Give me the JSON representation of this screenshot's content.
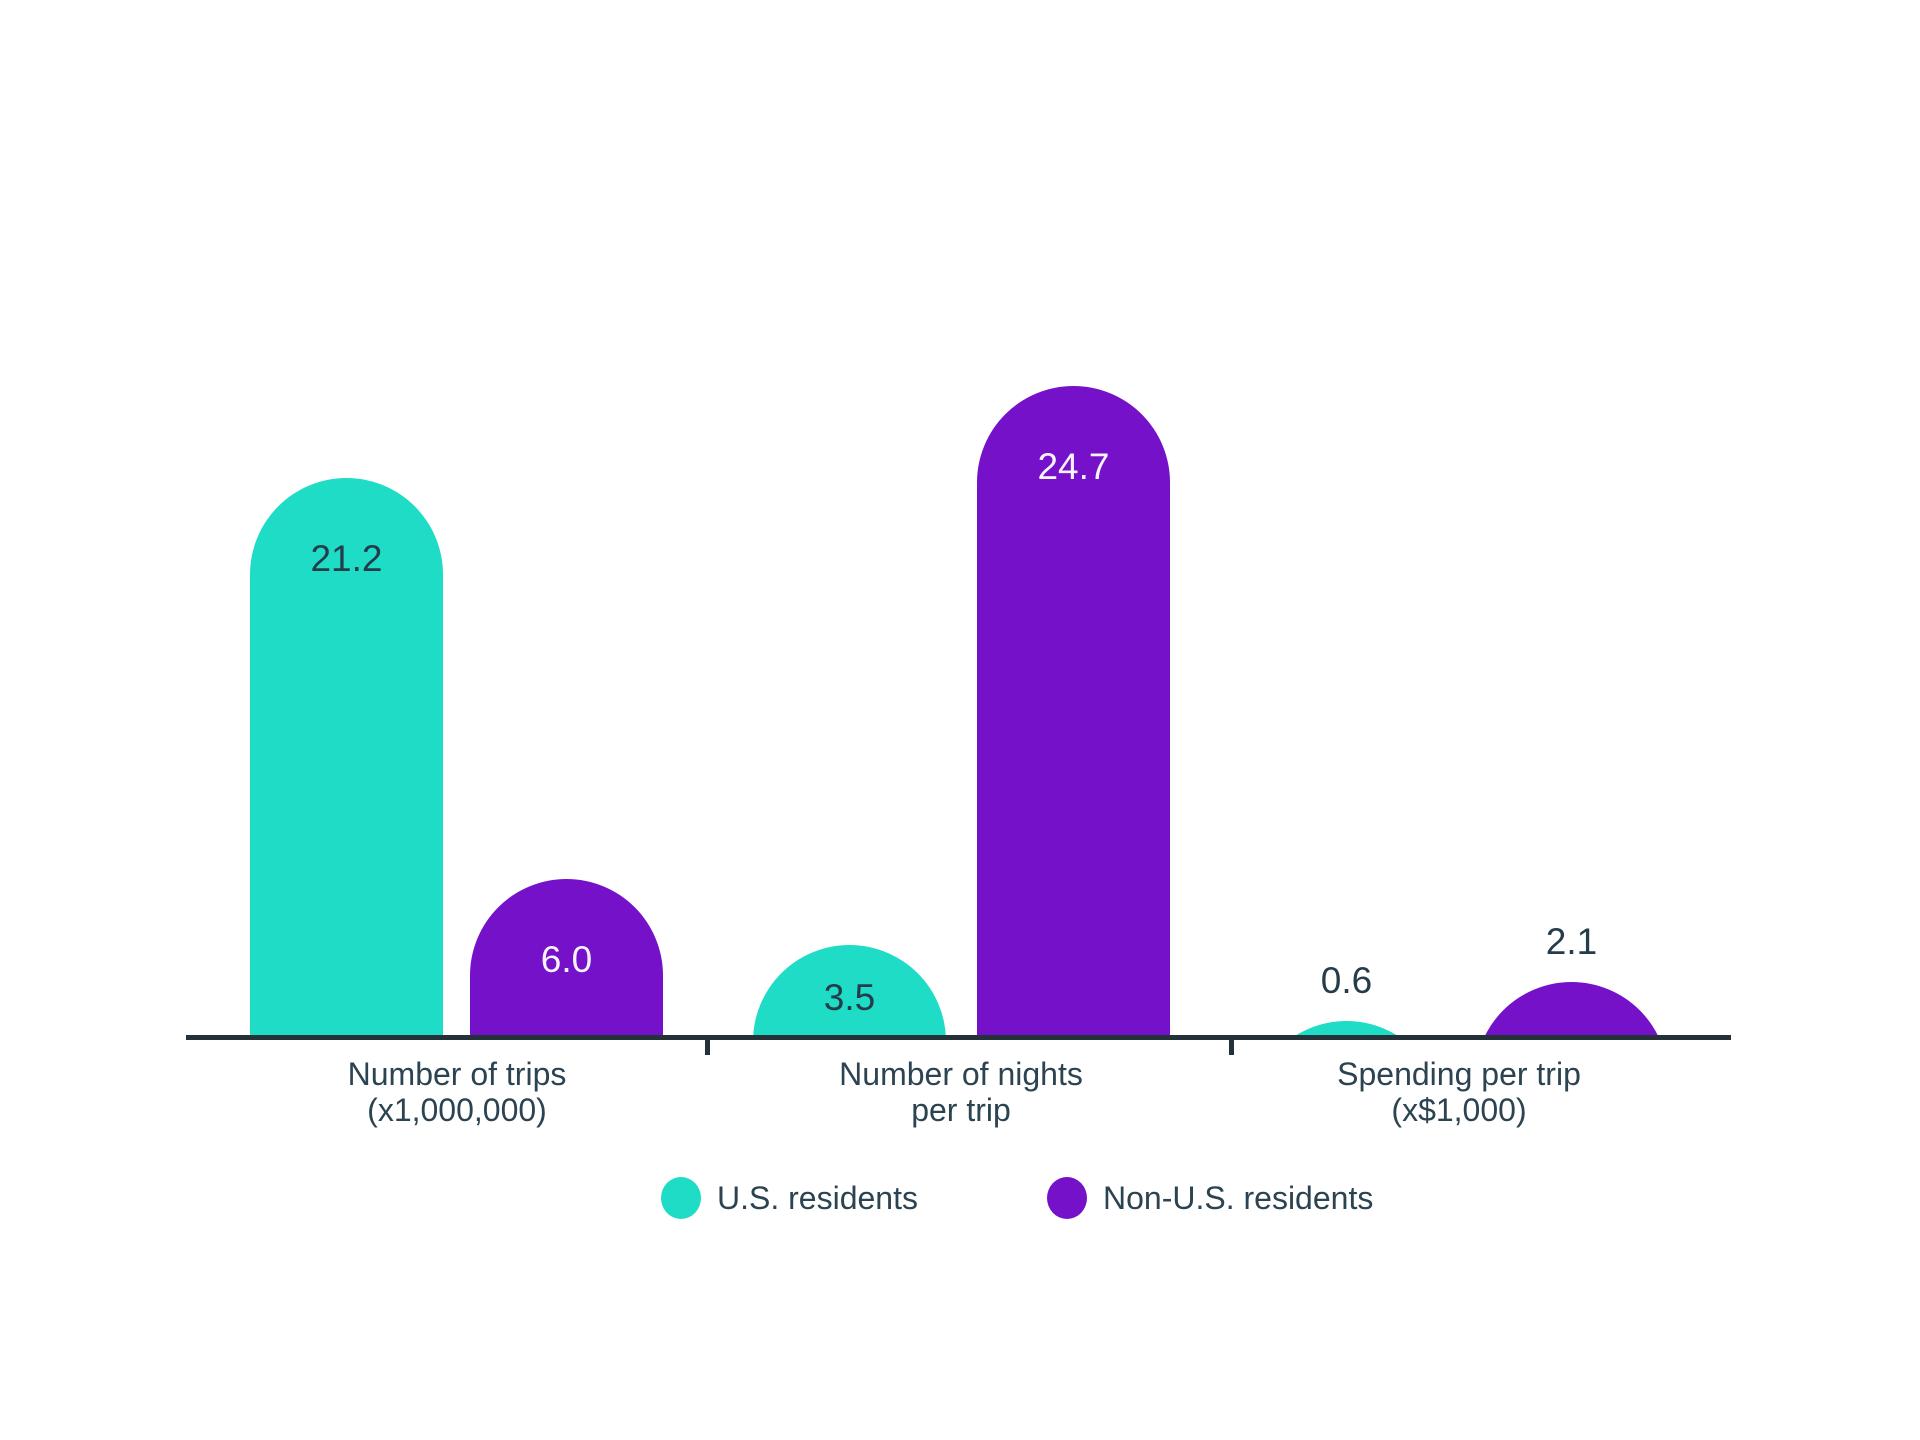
{
  "chart_data": {
    "type": "bar",
    "title": "",
    "xlabel": "",
    "ylabel": "",
    "categories": [
      [
        "Number of trips",
        "(x1,000,000)"
      ],
      [
        "Number of nights",
        "per trip"
      ],
      [
        "Spending per trip",
        "(x$1,000)"
      ]
    ],
    "series": [
      {
        "name": "U.S. residents",
        "color": "#1EDCC6",
        "values": [
          21.2,
          3.5,
          0.6
        ]
      },
      {
        "name": "Non-U.S. residents",
        "color": "#7411C9",
        "values": [
          6.0,
          24.7,
          2.1
        ]
      }
    ],
    "value_label_format": "one_decimal",
    "ylim": [
      0,
      26
    ],
    "grid": false,
    "legend_position": "bottom",
    "colors": {
      "axis": "#243138",
      "label_dark": "#253C4B",
      "label_on_purple": "#F7F4FB",
      "background": "#FFFFFF"
    }
  }
}
